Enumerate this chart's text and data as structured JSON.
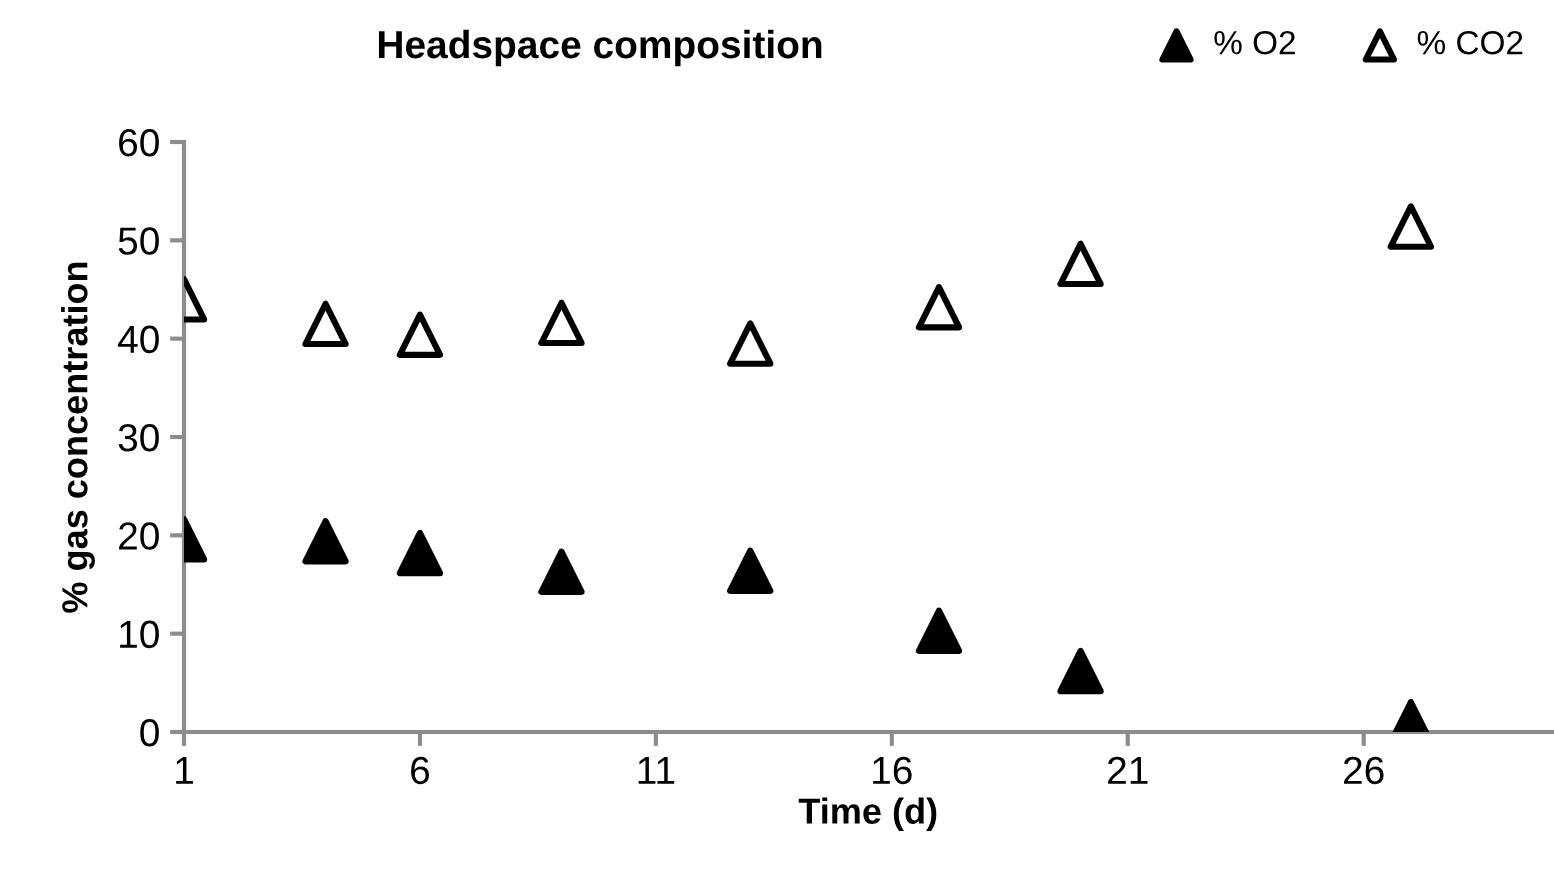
{
  "chart_data": {
    "type": "scatter",
    "title": "Headspace composition",
    "xlabel": "Time (d)",
    "ylabel": "% gas concentration",
    "x": [
      1,
      4,
      6,
      9,
      13,
      17,
      20,
      27
    ],
    "series": [
      {
        "name": "% O2",
        "color": "#000000",
        "values": [
          19.6,
          19.4,
          18.2,
          16.3,
          16.4,
          10.3,
          6.2,
          1.0
        ]
      },
      {
        "name": "% CO2",
        "color": "#000000",
        "values": [
          44.0,
          41.5,
          40.4,
          41.6,
          39.5,
          43.2,
          47.6,
          51.4
        ]
      }
    ],
    "xlim": [
      1,
      30
    ],
    "xticks": [
      1,
      6,
      11,
      16,
      21,
      26
    ],
    "ylim": [
      0,
      60
    ],
    "yticks": [
      0,
      10,
      20,
      30,
      40,
      50,
      60
    ],
    "marker": "triangle",
    "grid": false,
    "legend": "top right"
  }
}
